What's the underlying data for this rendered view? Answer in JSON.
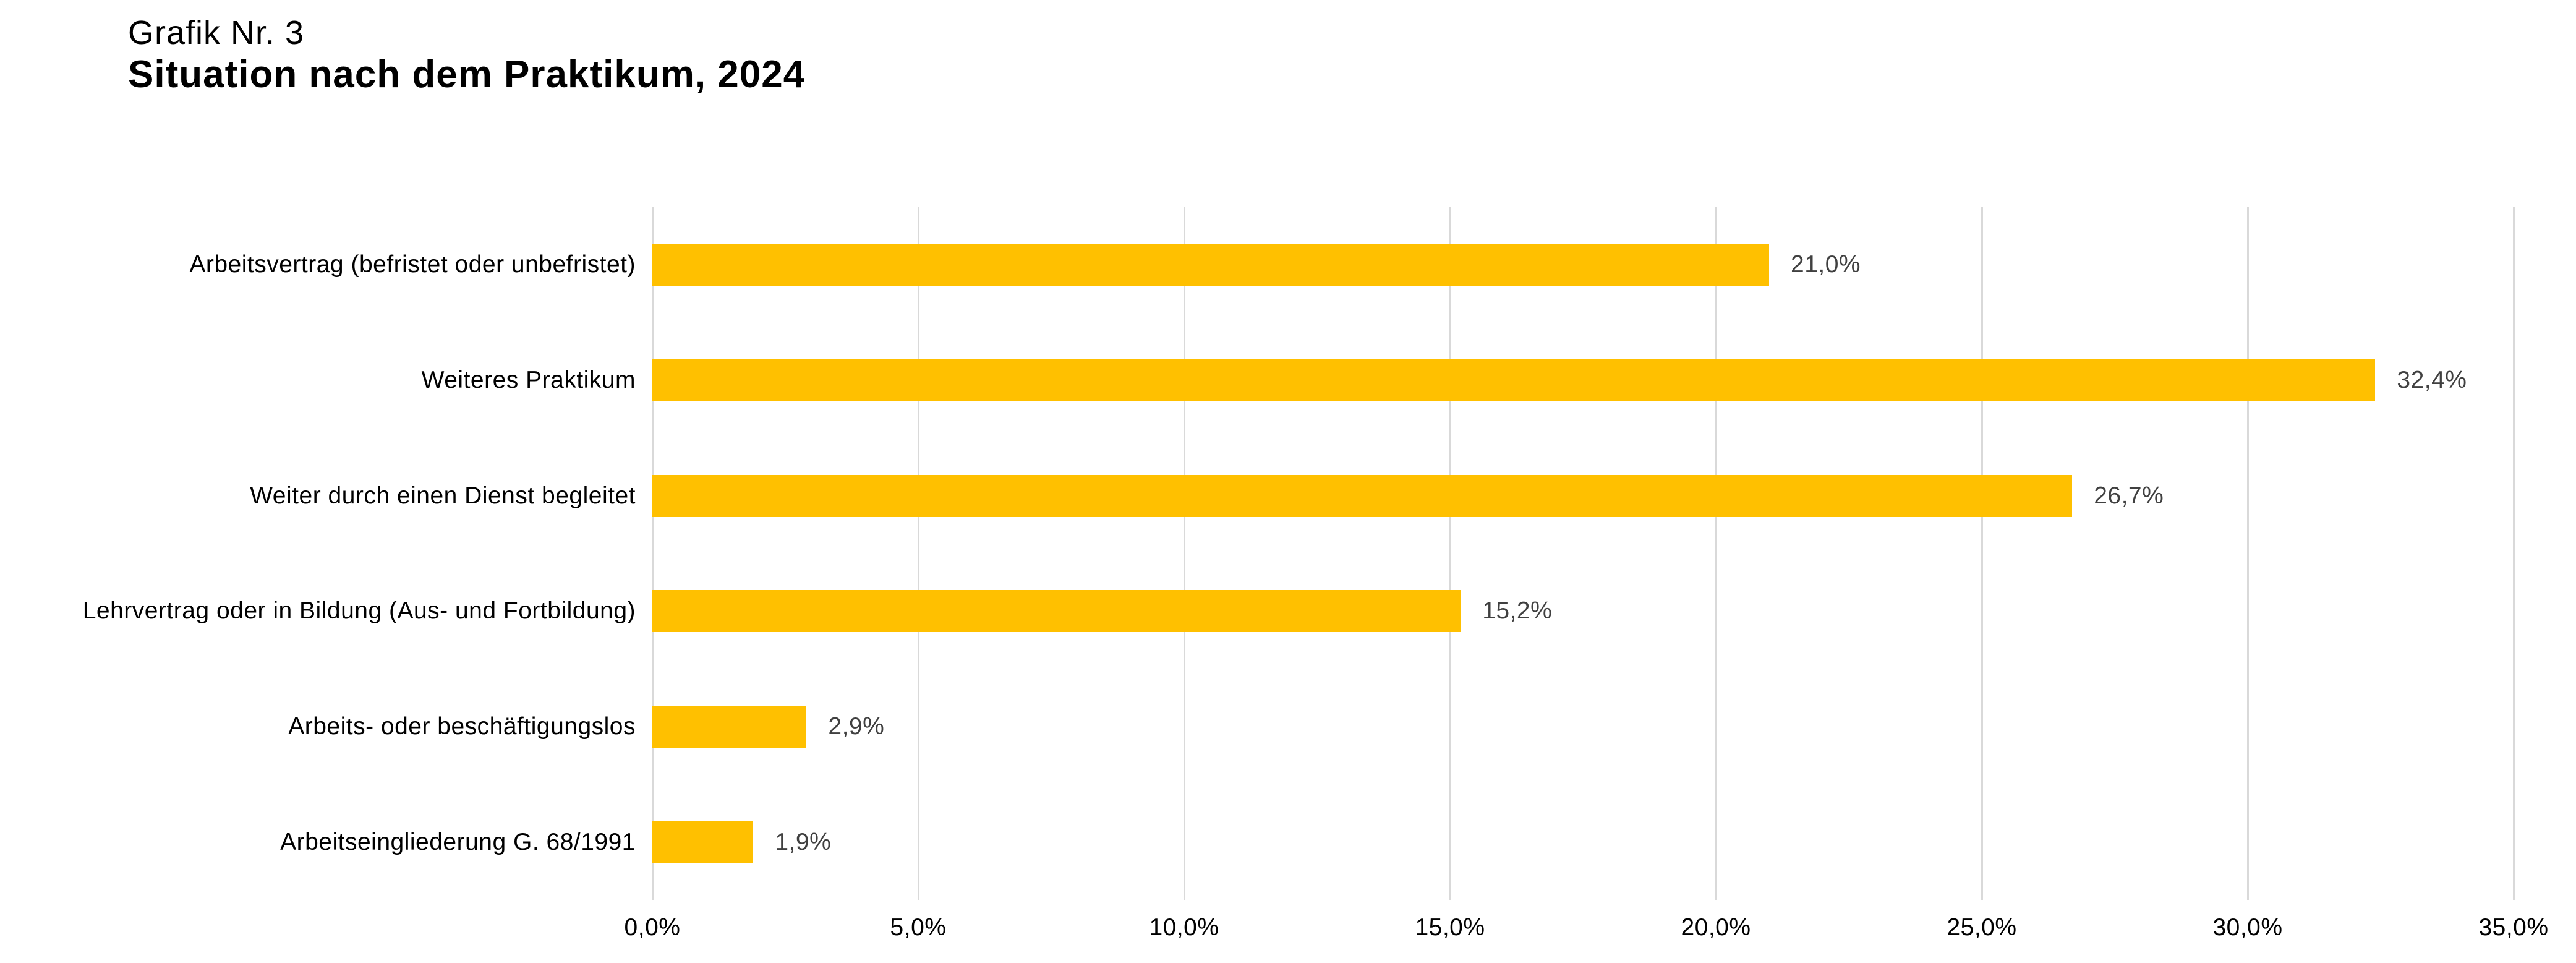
{
  "title": {
    "line1": "Grafik Nr. 3",
    "line2": "Situation nach dem Praktikum, 2024"
  },
  "colors": {
    "bar": "#FFC000",
    "gridline": "#D9D9D9",
    "value_label": "#404040",
    "text": "#000000"
  },
  "chart_data": {
    "type": "bar",
    "orientation": "horizontal",
    "title": "Situation nach dem Praktikum, 2024",
    "categories": [
      "Arbeitsvertrag (befristet oder unbefristet)",
      "Weiteres Praktikum",
      "Weiter durch einen Dienst begleitet",
      "Lehrvertrag oder in Bildung (Aus- und Fortbildung)",
      "Arbeits- oder beschäftigungslos",
      "Arbeitseingliederung G. 68/1991"
    ],
    "values": [
      21.0,
      32.4,
      26.7,
      15.2,
      2.9,
      1.9
    ],
    "value_labels": [
      "21,0%",
      "32,4%",
      "26,7%",
      "15,2%",
      "2,9%",
      "1,9%"
    ],
    "xlabel": "",
    "ylabel": "",
    "xlim": [
      0,
      35
    ],
    "ticks": [
      0,
      5,
      10,
      15,
      20,
      25,
      30,
      35
    ],
    "tick_labels": [
      "0,0%",
      "5,0%",
      "10,0%",
      "15,0%",
      "20,0%",
      "25,0%",
      "30,0%",
      "35,0%"
    ],
    "grid": "vertical",
    "legend": "none"
  }
}
